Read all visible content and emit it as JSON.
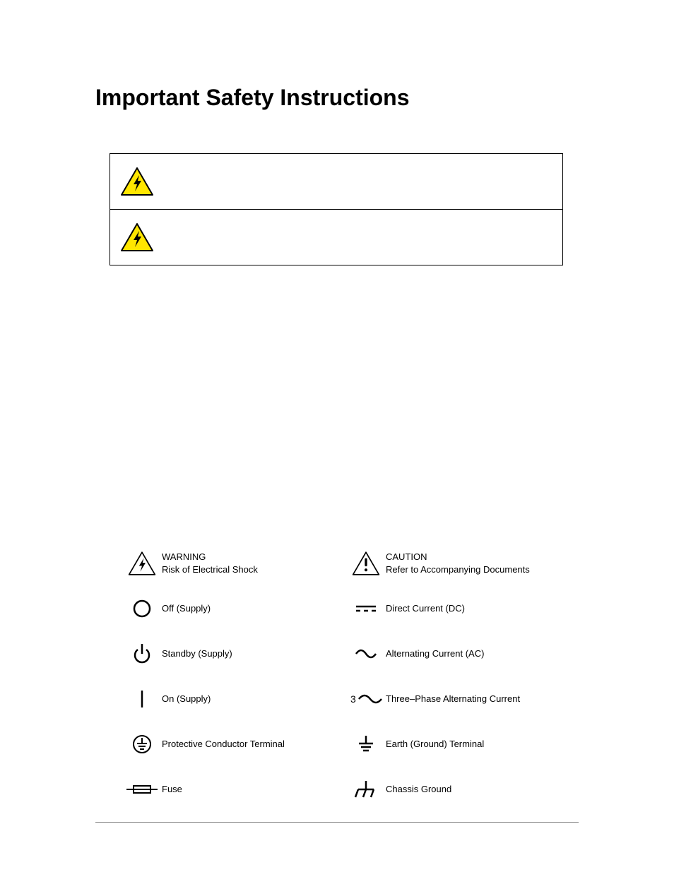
{
  "title": "Important Safety Instructions",
  "warning_icon": {
    "fill": "#ffe600",
    "stroke": "#000000",
    "bolt": "#000000"
  },
  "small_icon_colors": {
    "warning_fill": "#ffffff",
    "caution_fill": "#ffffff",
    "stroke": "#000000"
  },
  "legend_left": [
    {
      "label": "WARNING\nRisk of Electrical Shock",
      "icon": "warning-triangle"
    },
    {
      "label": "Off (Supply)",
      "icon": "off-circle"
    },
    {
      "label": "Standby (Supply)",
      "icon": "standby"
    },
    {
      "label": "On (Supply)",
      "icon": "on-line"
    },
    {
      "label": "Protective Conductor Terminal",
      "icon": "protective-earth"
    },
    {
      "label": "Fuse",
      "icon": "fuse"
    }
  ],
  "legend_right": [
    {
      "label": "CAUTION\nRefer to Accompanying Documents",
      "icon": "caution-triangle"
    },
    {
      "label": "Direct Current (DC)",
      "icon": "dc"
    },
    {
      "label": "Alternating Current (AC)",
      "icon": "ac"
    },
    {
      "label": "Three–Phase Alternating Current",
      "icon": "three-phase"
    },
    {
      "label": "Earth (Ground) Terminal",
      "icon": "earth"
    },
    {
      "label": "Chassis Ground",
      "icon": "chassis"
    }
  ],
  "typography": {
    "title_fontsize": 32,
    "title_weight": 700,
    "legend_fontsize": 13
  },
  "colors": {
    "text": "#000000",
    "background": "#ffffff",
    "rule": "#808080"
  }
}
